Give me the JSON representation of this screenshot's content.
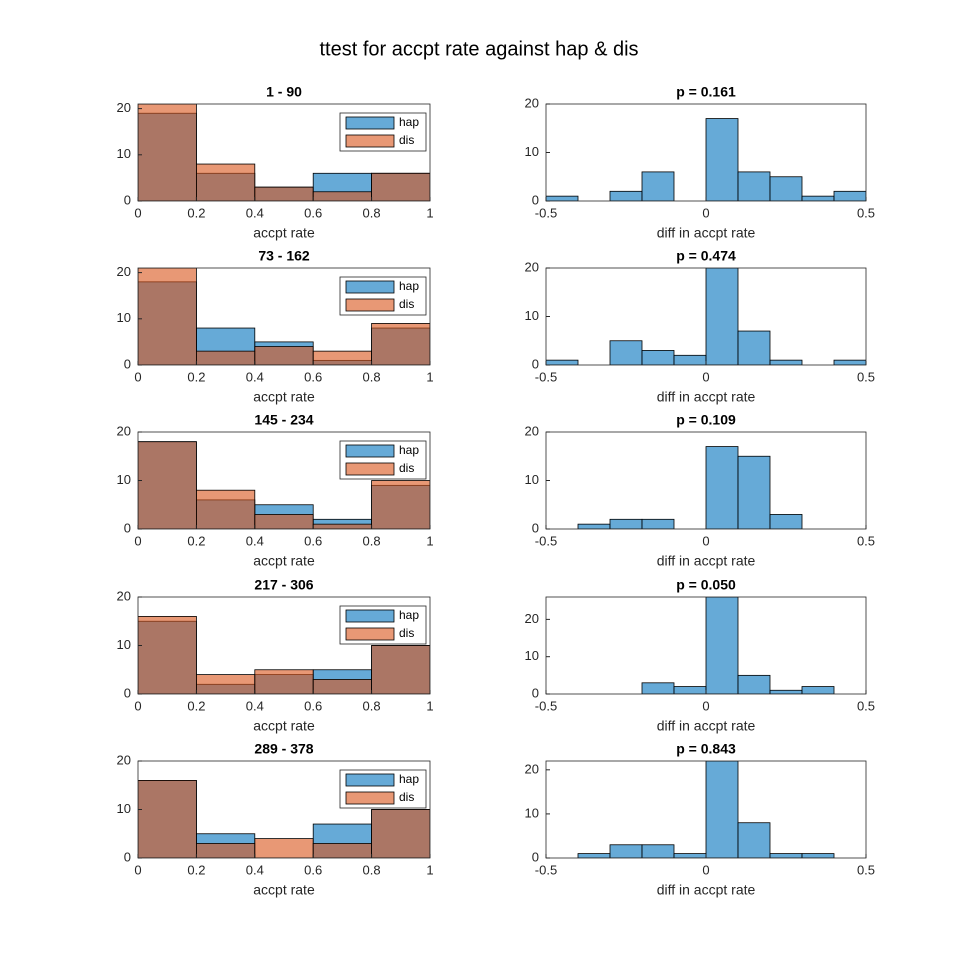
{
  "title": "ttest for accpt rate against hap & dis",
  "chart_data": [
    {
      "type": "histogram",
      "title": "1 - 90",
      "xlabel": "accpt rate",
      "bins": [
        0,
        0.2,
        0.4,
        0.6,
        0.8,
        1
      ],
      "xlim": [
        0,
        1
      ],
      "xticks": [
        0,
        0.2,
        0.4,
        0.6,
        0.8,
        1
      ],
      "ylim": [
        0,
        21
      ],
      "yticks": [
        0,
        10,
        20
      ],
      "face_alpha": 0.6,
      "legend": "northeast",
      "series": [
        {
          "name": "hap",
          "color": "#0072bd",
          "values": [
            19,
            6,
            3,
            6,
            6
          ]
        },
        {
          "name": "dis",
          "color": "#d95319",
          "values": [
            21,
            8,
            3,
            2,
            6
          ]
        }
      ]
    },
    {
      "type": "histogram",
      "title": "p = 0.161",
      "xlabel": "diff in accpt rate",
      "bins": [
        -0.5,
        -0.4,
        -0.3,
        -0.2,
        -0.1,
        0,
        0.1,
        0.2,
        0.3,
        0.4,
        0.5
      ],
      "xlim": [
        -0.5,
        0.5
      ],
      "xticks": [
        -0.5,
        0,
        0.5
      ],
      "ylim": [
        0,
        20
      ],
      "yticks": [
        0,
        10,
        20
      ],
      "face_alpha": 0.6,
      "color": "#0072bd",
      "values": [
        1,
        0,
        2,
        6,
        0,
        17,
        6,
        5,
        1,
        2
      ]
    },
    {
      "type": "histogram",
      "title": "73 - 162",
      "xlabel": "accpt rate",
      "bins": [
        0,
        0.2,
        0.4,
        0.6,
        0.8,
        1
      ],
      "xlim": [
        0,
        1
      ],
      "xticks": [
        0,
        0.2,
        0.4,
        0.6,
        0.8,
        1
      ],
      "ylim": [
        0,
        21
      ],
      "yticks": [
        0,
        10,
        20
      ],
      "face_alpha": 0.6,
      "legend": "northeast",
      "series": [
        {
          "name": "hap",
          "color": "#0072bd",
          "values": [
            18,
            8,
            5,
            1,
            8
          ]
        },
        {
          "name": "dis",
          "color": "#d95319",
          "values": [
            21,
            3,
            4,
            3,
            9
          ]
        }
      ]
    },
    {
      "type": "histogram",
      "title": "p = 0.474",
      "xlabel": "diff in accpt rate",
      "bins": [
        -0.5,
        -0.4,
        -0.3,
        -0.2,
        -0.1,
        0,
        0.1,
        0.2,
        0.3,
        0.4,
        0.5
      ],
      "xlim": [
        -0.5,
        0.5
      ],
      "xticks": [
        -0.5,
        0,
        0.5
      ],
      "ylim": [
        0,
        20
      ],
      "yticks": [
        0,
        10,
        20
      ],
      "face_alpha": 0.6,
      "color": "#0072bd",
      "values": [
        1,
        0,
        5,
        3,
        2,
        20,
        7,
        1,
        0,
        1
      ]
    },
    {
      "type": "histogram",
      "title": "145 - 234",
      "xlabel": "accpt rate",
      "bins": [
        0,
        0.2,
        0.4,
        0.6,
        0.8,
        1
      ],
      "xlim": [
        0,
        1
      ],
      "xticks": [
        0,
        0.2,
        0.4,
        0.6,
        0.8,
        1
      ],
      "ylim": [
        0,
        20
      ],
      "yticks": [
        0,
        10,
        20
      ],
      "face_alpha": 0.6,
      "legend": "northeast",
      "series": [
        {
          "name": "hap",
          "color": "#0072bd",
          "values": [
            18,
            6,
            5,
            2,
            9
          ]
        },
        {
          "name": "dis",
          "color": "#d95319",
          "values": [
            18,
            8,
            3,
            1,
            10
          ]
        }
      ]
    },
    {
      "type": "histogram",
      "title": "p = 0.109",
      "xlabel": "diff in accpt rate",
      "bins": [
        -0.5,
        -0.4,
        -0.3,
        -0.2,
        -0.1,
        0,
        0.1,
        0.2,
        0.3,
        0.4,
        0.5
      ],
      "xlim": [
        -0.5,
        0.5
      ],
      "xticks": [
        -0.5,
        0,
        0.5
      ],
      "ylim": [
        0,
        20
      ],
      "yticks": [
        0,
        10,
        20
      ],
      "face_alpha": 0.6,
      "color": "#0072bd",
      "values": [
        0,
        1,
        2,
        2,
        0,
        17,
        15,
        3,
        0,
        0
      ]
    },
    {
      "type": "histogram",
      "title": "217 - 306",
      "xlabel": "accpt rate",
      "bins": [
        0,
        0.2,
        0.4,
        0.6,
        0.8,
        1
      ],
      "xlim": [
        0,
        1
      ],
      "xticks": [
        0,
        0.2,
        0.4,
        0.6,
        0.8,
        1
      ],
      "ylim": [
        0,
        20
      ],
      "yticks": [
        0,
        10,
        20
      ],
      "face_alpha": 0.6,
      "legend": "northeast",
      "series": [
        {
          "name": "hap",
          "color": "#0072bd",
          "values": [
            15,
            2,
            4,
            5,
            10
          ]
        },
        {
          "name": "dis",
          "color": "#d95319",
          "values": [
            16,
            4,
            5,
            3,
            10
          ]
        }
      ]
    },
    {
      "type": "histogram",
      "title": "p = 0.050",
      "xlabel": "diff in accpt rate",
      "bins": [
        -0.5,
        -0.4,
        -0.3,
        -0.2,
        -0.1,
        0,
        0.1,
        0.2,
        0.3,
        0.4,
        0.5
      ],
      "xlim": [
        -0.5,
        0.5
      ],
      "xticks": [
        -0.5,
        0,
        0.5
      ],
      "ylim": [
        0,
        26
      ],
      "yticks": [
        0,
        10,
        20
      ],
      "face_alpha": 0.6,
      "color": "#0072bd",
      "values": [
        0,
        0,
        0,
        3,
        2,
        26,
        5,
        1,
        2,
        0
      ]
    },
    {
      "type": "histogram",
      "title": "289 - 378",
      "xlabel": "accpt rate",
      "bins": [
        0,
        0.2,
        0.4,
        0.6,
        0.8,
        1
      ],
      "xlim": [
        0,
        1
      ],
      "xticks": [
        0,
        0.2,
        0.4,
        0.6,
        0.8,
        1
      ],
      "ylim": [
        0,
        20
      ],
      "yticks": [
        0,
        10,
        20
      ],
      "face_alpha": 0.6,
      "legend": "northeast",
      "series": [
        {
          "name": "hap",
          "color": "#0072bd",
          "values": [
            16,
            5,
            0,
            7,
            10
          ]
        },
        {
          "name": "dis",
          "color": "#d95319",
          "values": [
            16,
            3,
            4,
            3,
            10
          ]
        }
      ]
    },
    {
      "type": "histogram",
      "title": "p = 0.843",
      "xlabel": "diff in accpt rate",
      "bins": [
        -0.5,
        -0.4,
        -0.3,
        -0.2,
        -0.1,
        0,
        0.1,
        0.2,
        0.3,
        0.4,
        0.5
      ],
      "xlim": [
        -0.5,
        0.5
      ],
      "xticks": [
        -0.5,
        0,
        0.5
      ],
      "ylim": [
        0,
        22
      ],
      "yticks": [
        0,
        10,
        20
      ],
      "face_alpha": 0.6,
      "color": "#0072bd",
      "values": [
        0,
        1,
        3,
        3,
        1,
        22,
        8,
        1,
        1,
        0
      ]
    }
  ]
}
